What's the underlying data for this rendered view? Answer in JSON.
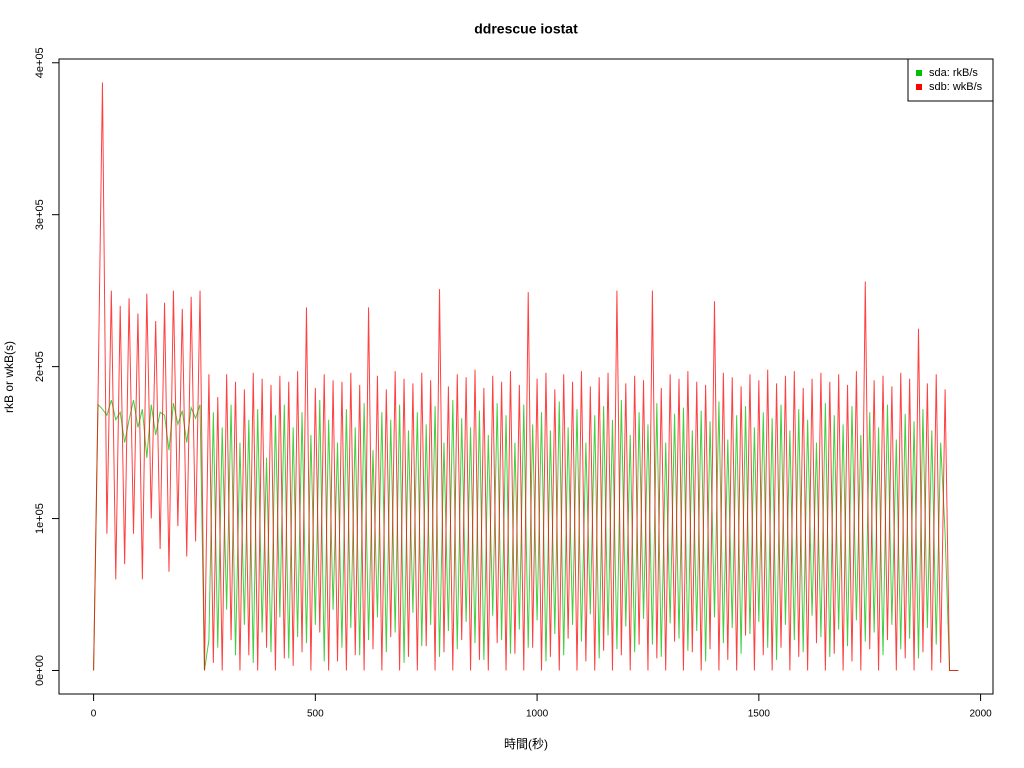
{
  "chart_data": {
    "type": "line",
    "title": "ddrescue iostat",
    "x_label": "時間(秒)",
    "y_label": "rkB or wkB(s)",
    "xlim": [
      -78,
      2028
    ],
    "xticks": [
      0,
      500,
      1000,
      1500,
      2000
    ],
    "ylim": [
      -15480,
      402480
    ],
    "yticks": [
      {
        "value": 0,
        "label": "0e+00"
      },
      {
        "value": 100000,
        "label": "1e+05"
      },
      {
        "value": 200000,
        "label": "2e+05"
      },
      {
        "value": 300000,
        "label": "3e+05"
      },
      {
        "value": 400000,
        "label": "4e+05"
      }
    ],
    "legend": "topright",
    "x": [
      0,
      10,
      20,
      30,
      40,
      50,
      60,
      70,
      80,
      90,
      100,
      110,
      120,
      130,
      140,
      150,
      160,
      170,
      180,
      190,
      200,
      210,
      220,
      230,
      240,
      250,
      260,
      270,
      280,
      290,
      300,
      310,
      320,
      330,
      340,
      350,
      360,
      370,
      380,
      390,
      400,
      410,
      420,
      430,
      440,
      450,
      460,
      470,
      480,
      490,
      500,
      510,
      520,
      530,
      540,
      550,
      560,
      570,
      580,
      590,
      600,
      610,
      620,
      630,
      640,
      650,
      660,
      670,
      680,
      690,
      700,
      710,
      720,
      730,
      740,
      750,
      760,
      770,
      780,
      790,
      800,
      810,
      820,
      830,
      840,
      850,
      860,
      870,
      880,
      890,
      900,
      910,
      920,
      930,
      940,
      950,
      960,
      970,
      980,
      990,
      1000,
      1010,
      1020,
      1030,
      1040,
      1050,
      1060,
      1070,
      1080,
      1090,
      1100,
      1110,
      1120,
      1130,
      1140,
      1150,
      1160,
      1170,
      1180,
      1190,
      1200,
      1210,
      1220,
      1230,
      1240,
      1250,
      1260,
      1270,
      1280,
      1290,
      1300,
      1310,
      1320,
      1330,
      1340,
      1350,
      1360,
      1370,
      1380,
      1390,
      1400,
      1410,
      1420,
      1430,
      1440,
      1450,
      1460,
      1470,
      1480,
      1490,
      1500,
      1510,
      1520,
      1530,
      1540,
      1550,
      1560,
      1570,
      1580,
      1590,
      1600,
      1610,
      1620,
      1630,
      1640,
      1650,
      1660,
      1670,
      1680,
      1690,
      1700,
      1710,
      1720,
      1730,
      1740,
      1750,
      1760,
      1770,
      1780,
      1790,
      1800,
      1810,
      1820,
      1830,
      1840,
      1850,
      1860,
      1870,
      1880,
      1890,
      1900,
      1910,
      1920,
      1930,
      1940,
      1950
    ],
    "series": [
      {
        "name": "sda: rkB/s",
        "color": "#00c000",
        "values": [
          0,
          175000,
          172000,
          168000,
          178000,
          165000,
          170000,
          150000,
          165000,
          178000,
          160000,
          172000,
          140000,
          175000,
          155000,
          170000,
          168000,
          145000,
          176000,
          162000,
          171000,
          150000,
          173000,
          166000,
          175000,
          0,
          20000,
          170000,
          15000,
          160000,
          40000,
          175000,
          10000,
          150000,
          30000,
          165000,
          5000,
          172000,
          25000,
          140000,
          12000,
          168000,
          35000,
          175000,
          8000,
          160000,
          22000,
          170000,
          18000,
          155000,
          30000,
          178000,
          6000,
          165000,
          40000,
          150000,
          15000,
          172000,
          28000,
          160000,
          10000,
          176000,
          20000,
          145000,
          35000,
          170000,
          12000,
          165000,
          25000,
          175000,
          5000,
          158000,
          38000,
          170000,
          16000,
          162000,
          30000,
          174000,
          9000,
          150000,
          26000,
          178000,
          14000,
          166000,
          32000,
          160000,
          18000,
          171000,
          7000,
          155000,
          36000,
          176000,
          20000,
          168000,
          11000,
          150000,
          27000,
          175000,
          15000,
          162000,
          33000,
          170000,
          6000,
          158000,
          24000,
          177000,
          10000,
          160000,
          30000,
          172000,
          19000,
          150000,
          37000,
          168000,
          8000,
          174000,
          23000,
          165000,
          14000,
          178000,
          29000,
          155000,
          12000,
          170000,
          34000,
          162000,
          17000,
          176000,
          9000,
          150000,
          31000,
          169000,
          21000,
          173000,
          13000,
          158000,
          26000,
          171000,
          6000,
          164000,
          35000,
          177000,
          18000,
          152000,
          28000,
          168000,
          11000,
          174000,
          24000,
          160000,
          32000,
          170000,
          15000,
          166000,
          7000,
          175000,
          30000,
          158000,
          20000,
          172000,
          12000,
          165000,
          36000,
          150000,
          22000,
          176000,
          9000,
          168000,
          27000,
          162000,
          16000,
          174000,
          33000,
          155000,
          19000,
          170000,
          25000,
          160000,
          10000,
          175000,
          30000,
          152000,
          14000,
          169000,
          21000,
          164000,
          8000,
          172000,
          28000,
          158000,
          17000,
          150000,
          90000,
          0,
          0,
          0
        ]
      },
      {
        "name": "sdb: wkB/s",
        "color": "#ff0000",
        "values": [
          0,
          180000,
          387000,
          90000,
          250000,
          60000,
          240000,
          70000,
          245000,
          90000,
          235000,
          60000,
          248000,
          100000,
          230000,
          80000,
          242000,
          65000,
          250000,
          95000,
          238000,
          75000,
          246000,
          85000,
          250000,
          0,
          195000,
          5000,
          180000,
          0,
          195000,
          20000,
          190000,
          0,
          185000,
          10000,
          196000,
          0,
          192000,
          15000,
          188000,
          0,
          194000,
          8000,
          190000,
          3000,
          197000,
          12000,
          239000,
          0,
          186000,
          25000,
          195000,
          0,
          191000,
          6000,
          190000,
          0,
          196000,
          10000,
          188000,
          0,
          239000,
          14000,
          194000,
          0,
          185000,
          22000,
          197000,
          0,
          192000,
          9000,
          189000,
          0,
          196000,
          16000,
          191000,
          0,
          251000,
          12000,
          187000,
          0,
          195000,
          20000,
          193000,
          0,
          198000,
          7000,
          186000,
          0,
          194000,
          18000,
          190000,
          0,
          197000,
          11000,
          188000,
          0,
          249000,
          15000,
          192000,
          0,
          196000,
          9000,
          185000,
          0,
          195000,
          21000,
          190000,
          0,
          197000,
          6000,
          187000,
          0,
          193000,
          13000,
          196000,
          0,
          250000,
          10000,
          189000,
          0,
          194000,
          17000,
          191000,
          0,
          250000,
          8000,
          186000,
          0,
          195000,
          19000,
          192000,
          0,
          197000,
          12000,
          190000,
          0,
          188000,
          14000,
          243000,
          0,
          196000,
          7000,
          193000,
          0,
          187000,
          23000,
          195000,
          0,
          191000,
          10000,
          198000,
          0,
          189000,
          15000,
          194000,
          0,
          197000,
          9000,
          186000,
          0,
          192000,
          18000,
          196000,
          0,
          190000,
          11000,
          195000,
          0,
          188000,
          6000,
          197000,
          0,
          256000,
          14000,
          191000,
          0,
          194000,
          20000,
          187000,
          0,
          196000,
          8000,
          192000,
          0,
          225000,
          12000,
          189000,
          0,
          195000,
          5000,
          185000,
          0,
          0,
          0
        ]
      }
    ]
  }
}
